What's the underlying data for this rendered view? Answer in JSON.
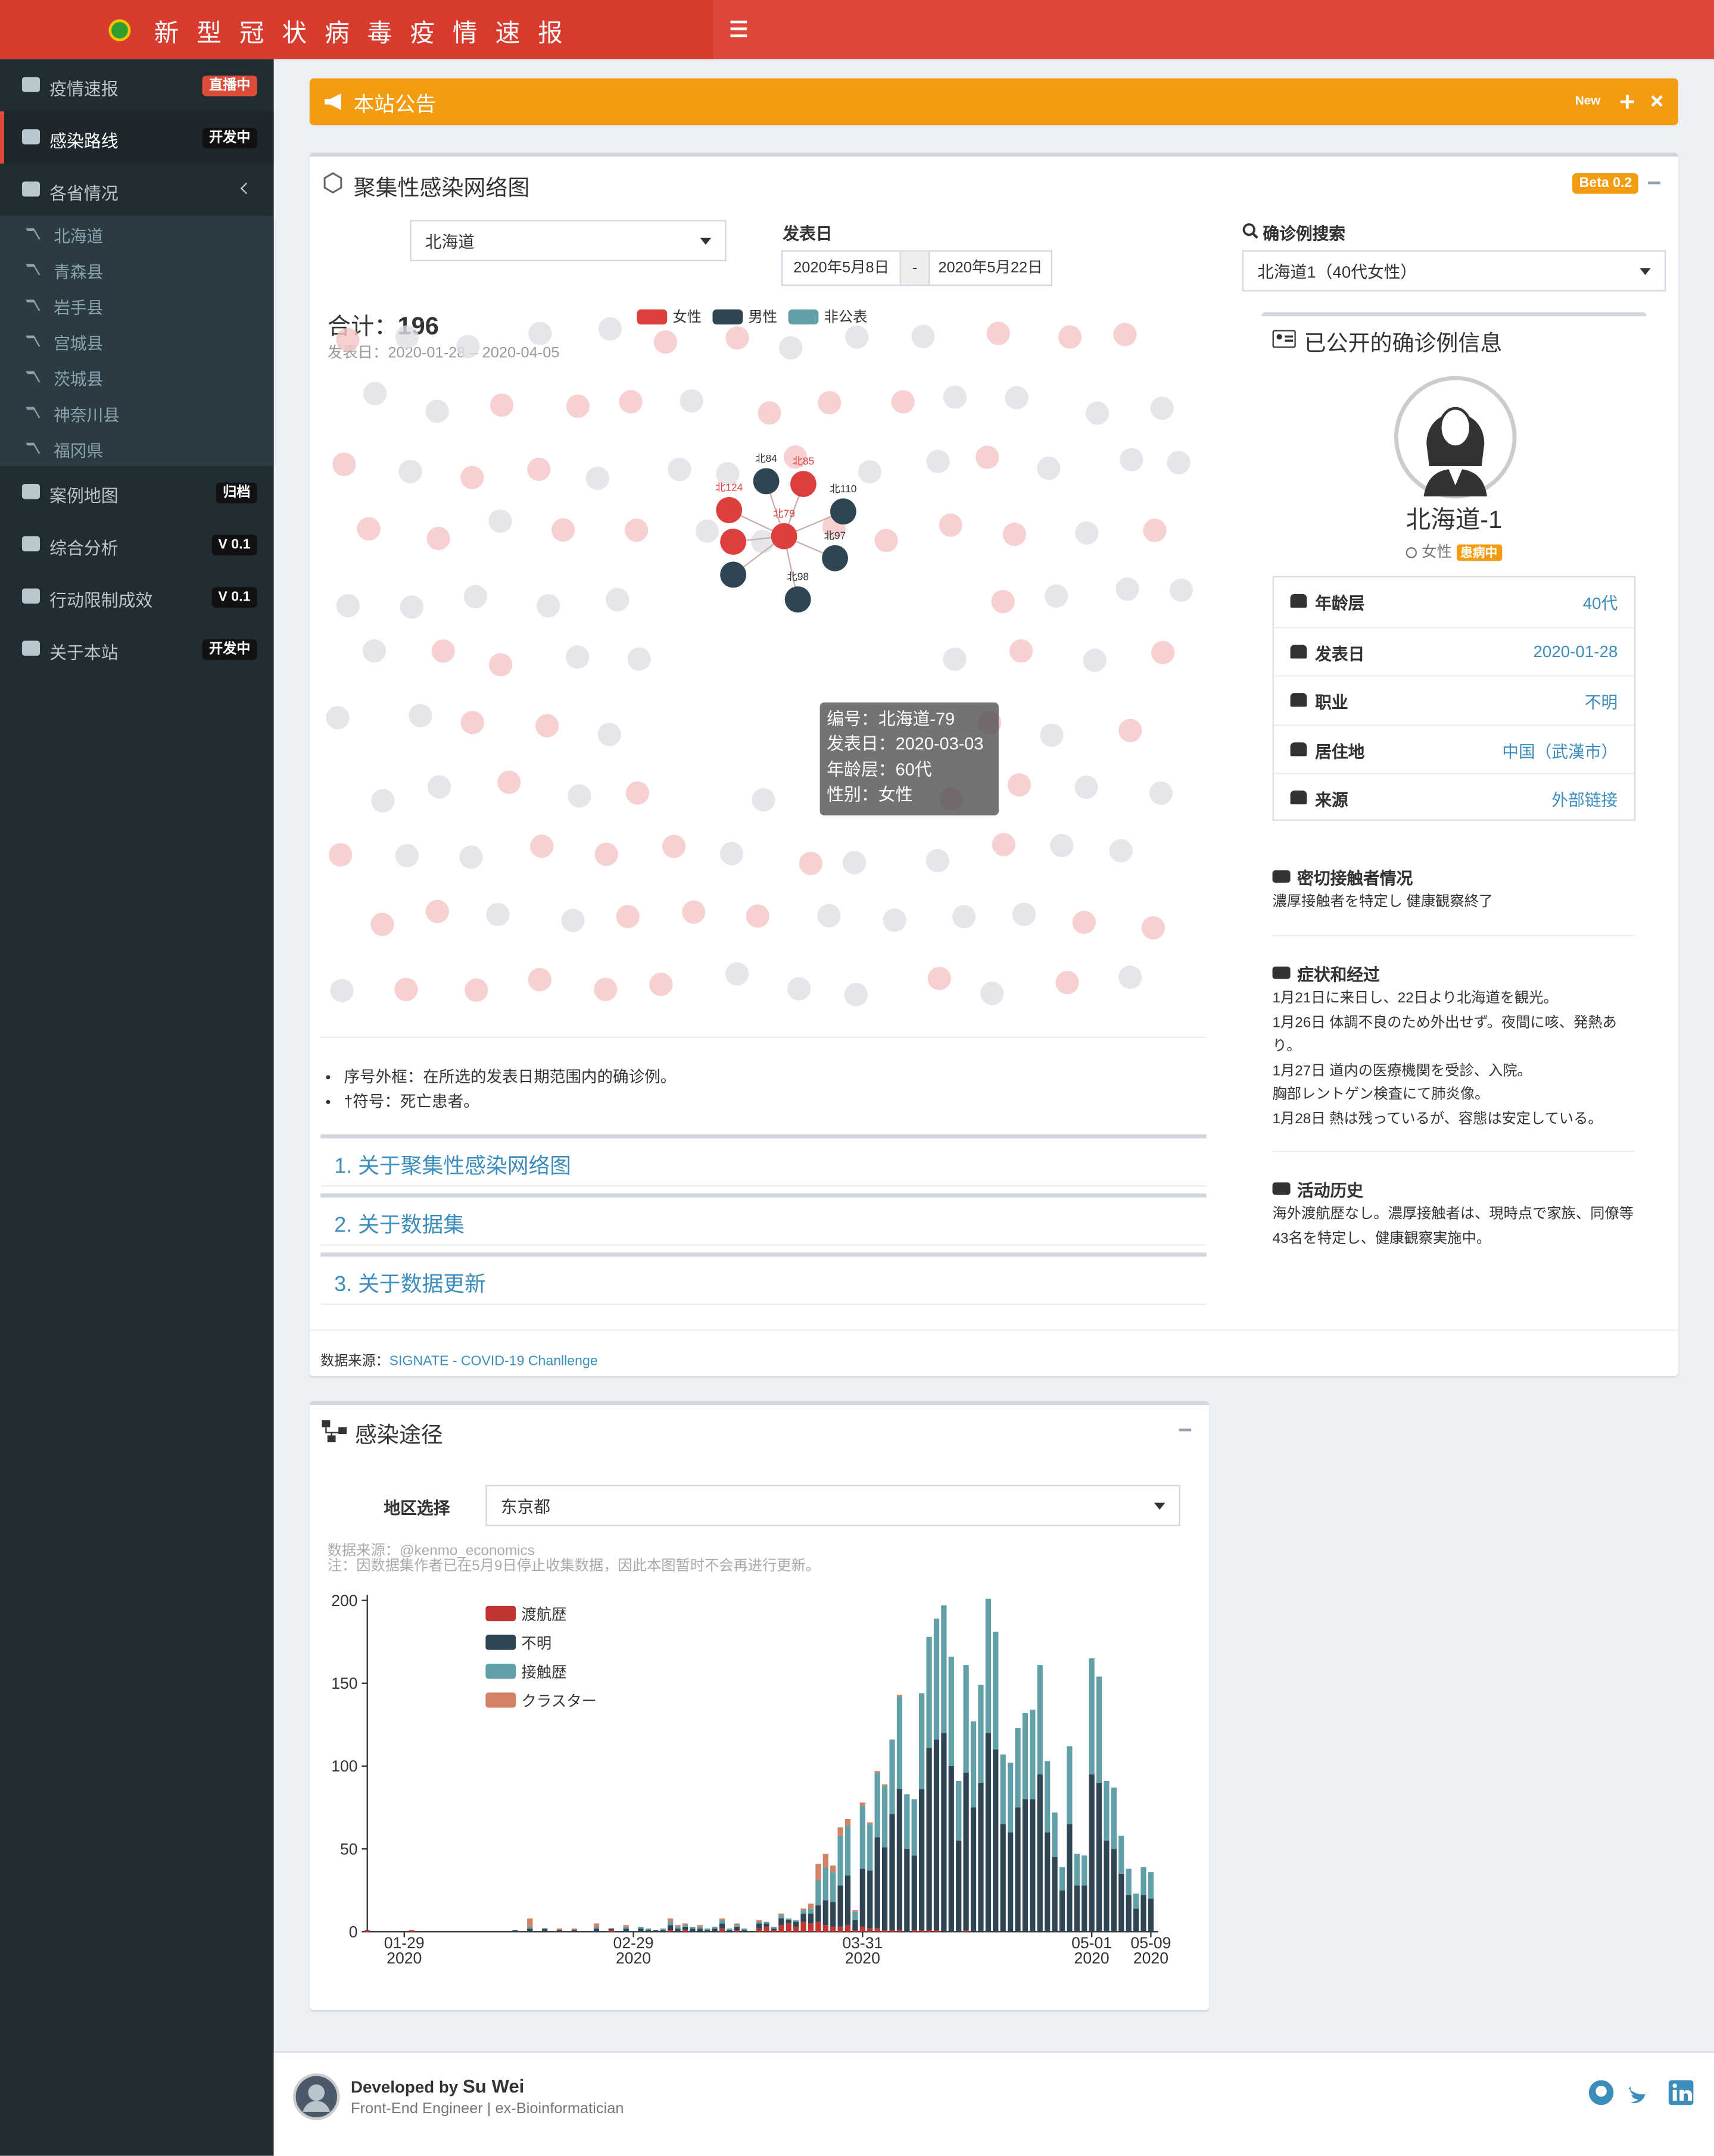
{
  "header": {
    "title": "新 型 冠 状 病 毒 疫 情 速 报"
  },
  "sidebar": {
    "items": [
      {
        "label": "疫情速报",
        "badge": "直播中"
      },
      {
        "label": "感染路线",
        "badge": "开发中"
      },
      {
        "label": "各省情况"
      },
      {
        "label": "案例地图",
        "badge": "归档"
      },
      {
        "label": "综合分析",
        "badge": "V 0.1"
      },
      {
        "label": "行动限制成效",
        "badge": "V 0.1"
      },
      {
        "label": "关于本站",
        "badge": "开发中"
      }
    ],
    "provinces": [
      "北海道",
      "青森县",
      "岩手县",
      "宫城县",
      "茨城县",
      "神奈川县",
      "福冈県"
    ]
  },
  "notice": {
    "title": "本站公告",
    "badge": "New"
  },
  "network_box": {
    "title": "聚集性感染网络图",
    "beta": "Beta 0.2",
    "region_select": "北海道",
    "date_label": "发表日",
    "date_from": "2020年5月8日",
    "date_sep": "-",
    "date_to": "2020年5月22日",
    "search_label": "确诊例搜索",
    "search_value": "北海道1（40代女性）",
    "total": {
      "label": "合计：",
      "value": 196
    },
    "date_range": "发表日：2020-01-28 – 2020-04-05",
    "legend": [
      {
        "name": "女性",
        "color": "#dd3f3f"
      },
      {
        "name": "男性",
        "color": "#2f4554"
      },
      {
        "name": "非公表",
        "color": "#61a0a8"
      }
    ],
    "nodes": [
      {
        "label": "北84",
        "gender": 1
      },
      {
        "label": "北85",
        "gender": 0
      },
      {
        "label": "北124",
        "gender": 0
      },
      {
        "label": "北110",
        "gender": 1
      },
      {
        "label": "北79",
        "gender": 0
      },
      {
        "label": "北97",
        "gender": 1
      },
      {
        "label": null,
        "gender": 0
      },
      {
        "label": null,
        "gender": 1
      },
      {
        "label": "北98",
        "gender": 1
      }
    ],
    "tooltip": [
      "编号：北海道-79",
      "发表日：2020-03-03",
      "年龄层：60代",
      "性别：女性"
    ],
    "notes": [
      "序号外框：在所选的发表日期范围内的确诊例。",
      "†符号：死亡患者。"
    ],
    "accordion": [
      "1. 关于聚集性感染网络图",
      "2. 关于数据集",
      "3. 关于数据更新"
    ],
    "source_label": "数据来源：",
    "source_link": "SIGNATE - COVID-19 Chanllenge"
  },
  "case_info": {
    "title": "已公开的确诊例信息",
    "name": "北海道-1",
    "gender": "女性",
    "status": "患病中",
    "rows": [
      {
        "label": "年龄层",
        "value": "40代"
      },
      {
        "label": "发表日",
        "value": "2020-01-28"
      },
      {
        "label": "职业",
        "value": "不明"
      },
      {
        "label": "居住地",
        "value": "中国（武漢市）"
      },
      {
        "label": "来源",
        "value": "外部链接"
      }
    ],
    "sections": [
      {
        "title": "密切接触者情况",
        "text": [
          "濃厚接触者を特定し 健康観察終了"
        ]
      },
      {
        "title": "症状和经过",
        "text": [
          "1月21日に来日し、22日より北海道を観光。",
          "1月26日 体調不良のため外出せず。夜間に咳、発熱あり。",
          "1月27日 道内の医療機関を受診、入院。",
          "胸部レントゲン検査にて肺炎像。",
          "1月28日 熱は残っているが、容態は安定している。"
        ]
      },
      {
        "title": "活动历史",
        "text": [
          "海外渡航歴なし。濃厚接触者は、現時点で家族、同僚等43名を特定し、健康観察実施中。"
        ]
      }
    ]
  },
  "route_box": {
    "title": "感染途径",
    "region_label": "地区选择",
    "region_value": "东京都",
    "note1": "数据来源：@kenmo_economics",
    "note2": "注：因数据集作者已在5月9日停止收集数据，因此本图暂时不会再进行更新。"
  },
  "chart_data": {
    "type": "bar",
    "stacked": true,
    "x": [
      "2020-01-24",
      "2020-01-30",
      "2020-02-13",
      "2020-02-15",
      "2020-02-17",
      "2020-02-19",
      "2020-02-21",
      "2020-02-24",
      "2020-02-26",
      "2020-02-28",
      "2020-03-01",
      "2020-03-02",
      "2020-03-03",
      "2020-03-04",
      "2020-03-05",
      "2020-03-06",
      "2020-03-07",
      "2020-03-08",
      "2020-03-09",
      "2020-03-10",
      "2020-03-11",
      "2020-03-12",
      "2020-03-13",
      "2020-03-14",
      "2020-03-15",
      "2020-03-16",
      "2020-03-17",
      "2020-03-18",
      "2020-03-19",
      "2020-03-20",
      "2020-03-21",
      "2020-03-22",
      "2020-03-23",
      "2020-03-24",
      "2020-03-25",
      "2020-03-26",
      "2020-03-27",
      "2020-03-28",
      "2020-03-29",
      "2020-03-30",
      "2020-03-31",
      "2020-04-01",
      "2020-04-02",
      "2020-04-03",
      "2020-04-04",
      "2020-04-05",
      "2020-04-06",
      "2020-04-07",
      "2020-04-08",
      "2020-04-09",
      "2020-04-10",
      "2020-04-11",
      "2020-04-12",
      "2020-04-13",
      "2020-04-14",
      "2020-04-15",
      "2020-04-16",
      "2020-04-17",
      "2020-04-18",
      "2020-04-19",
      "2020-04-20",
      "2020-04-21",
      "2020-04-22",
      "2020-04-23",
      "2020-04-24",
      "2020-04-25",
      "2020-04-26",
      "2020-04-27",
      "2020-04-28",
      "2020-04-29",
      "2020-04-30",
      "2020-05-01",
      "2020-05-02",
      "2020-05-03",
      "2020-05-04",
      "2020-05-05",
      "2020-05-06",
      "2020-05-07",
      "2020-05-08",
      "2020-05-09"
    ],
    "series": [
      {
        "name": "渡航歴",
        "color": "#c23531",
        "values": [
          1,
          1,
          0,
          0,
          0,
          0,
          0,
          0,
          1,
          0,
          0,
          0,
          0,
          0,
          1,
          0,
          1,
          0,
          0,
          0,
          0,
          2,
          0,
          1,
          0,
          0,
          2,
          3,
          1,
          4,
          5,
          3,
          6,
          5,
          6,
          4,
          3,
          3,
          4,
          1,
          3,
          2,
          2,
          1,
          1,
          1,
          0,
          1,
          1,
          1,
          1,
          0,
          0,
          0,
          1,
          0,
          0,
          0,
          0,
          0,
          0,
          0,
          0,
          0,
          0,
          0,
          0,
          0,
          0,
          0,
          0,
          0,
          0,
          0,
          0,
          0,
          0,
          0,
          0,
          0
        ]
      },
      {
        "name": "不明",
        "color": "#2f4554",
        "values": [
          0,
          0,
          1,
          2,
          2,
          1,
          1,
          2,
          1,
          2,
          2,
          1,
          1,
          1,
          3,
          2,
          2,
          2,
          2,
          1,
          2,
          3,
          1,
          2,
          1,
          0,
          3,
          2,
          1,
          4,
          2,
          3,
          5,
          6,
          10,
          15,
          15,
          25,
          30,
          6,
          35,
          35,
          55,
          50,
          70,
          85,
          50,
          45,
          85,
          110,
          115,
          120,
          100,
          55,
          95,
          75,
          90,
          120,
          110,
          65,
          60,
          75,
          80,
          80,
          95,
          60,
          45,
          25,
          65,
          28,
          28,
          95,
          90,
          55,
          50,
          35,
          22,
          14,
          22,
          20
        ]
      },
      {
        "name": "接触歴",
        "color": "#61a0a8",
        "values": [
          0,
          0,
          0,
          1,
          0,
          0,
          0,
          1,
          0,
          1,
          1,
          1,
          0,
          1,
          2,
          1,
          1,
          1,
          1,
          1,
          1,
          2,
          1,
          1,
          1,
          0,
          1,
          1,
          1,
          2,
          1,
          1,
          2,
          3,
          15,
          20,
          18,
          30,
          30,
          5,
          38,
          28,
          39,
          37,
          45,
          56,
          33,
          34,
          58,
          67,
          73,
          77,
          66,
          36,
          65,
          52,
          59,
          81,
          71,
          42,
          42,
          48,
          52,
          54,
          66,
          43,
          27,
          14,
          47,
          19,
          18,
          70,
          64,
          36,
          37,
          23,
          16,
          9,
          17,
          16
        ]
      },
      {
        "name": "クラスター",
        "color": "#d48265",
        "values": [
          0,
          0,
          0,
          5,
          0,
          1,
          1,
          2,
          0,
          1,
          0,
          0,
          0,
          0,
          2,
          1,
          1,
          0,
          1,
          0,
          0,
          1,
          0,
          1,
          0,
          0,
          1,
          0,
          0,
          1,
          0,
          0,
          1,
          3,
          10,
          8,
          4,
          5,
          4,
          1,
          2,
          1,
          1,
          1,
          0,
          1,
          0,
          0,
          0,
          0,
          0,
          0,
          0,
          0,
          0,
          0,
          0,
          0,
          0,
          0,
          0,
          0,
          0,
          0,
          0,
          0,
          0,
          0,
          0,
          0,
          0,
          0,
          0,
          0,
          0,
          0,
          0,
          0,
          0,
          0
        ]
      }
    ],
    "xlim": [
      "2020-01-24",
      "2020-05-10"
    ],
    "xticks": [
      {
        "value": "2020-01-29",
        "label": "01-29\n2020"
      },
      {
        "value": "2020-02-29",
        "label": "02-29\n2020"
      },
      {
        "value": "2020-03-31",
        "label": "03-31\n2020"
      },
      {
        "value": "2020-05-01",
        "label": "05-01\n2020"
      },
      {
        "value": "2020-05-09",
        "label": "05-09\n2020"
      }
    ],
    "ylim": [
      0,
      200
    ],
    "yticks": [
      0,
      50,
      100,
      150,
      200
    ],
    "legend": "top-left"
  },
  "footer": {
    "developed": "Developed by",
    "name": "Su Wei",
    "role": "Front-End Engineer | ex-Bioinformatician"
  }
}
